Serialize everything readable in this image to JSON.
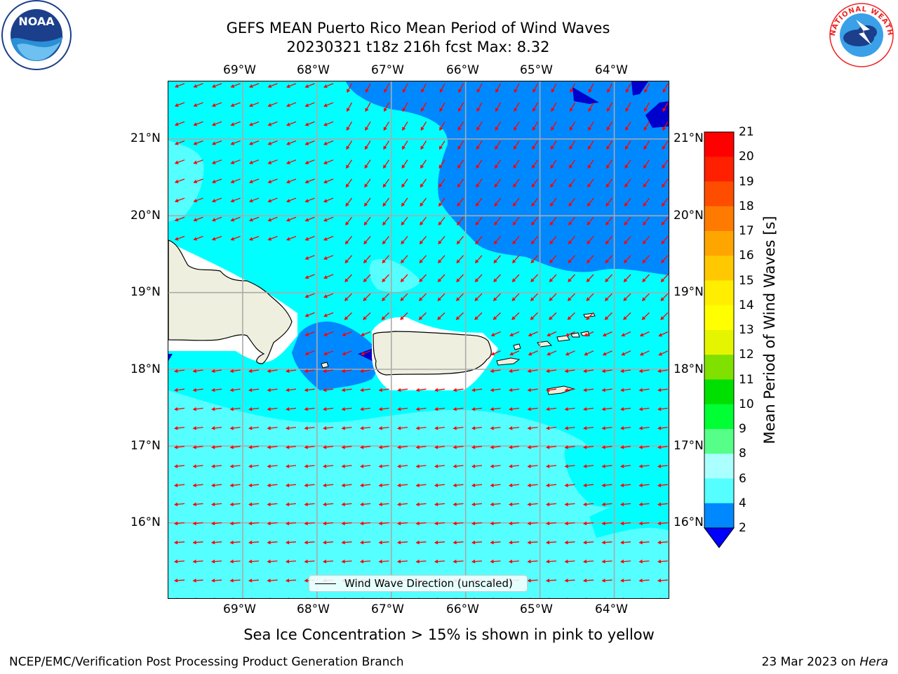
{
  "title": {
    "line1": "GEFS MEAN Puerto Rico Mean Period of Wind Waves",
    "line2": "20230321 t18z 216h fcst   Max: 8.32"
  },
  "axes": {
    "lon_labels": [
      "69°W",
      "68°W",
      "67°W",
      "66°W",
      "65°W",
      "64°W"
    ],
    "lat_labels": [
      "21°N",
      "20°N",
      "19°N",
      "18°N",
      "17°N",
      "16°N"
    ],
    "lon_range": [
      -70.0,
      -63.25
    ],
    "lat_range": [
      15.0,
      21.75
    ],
    "grid": true
  },
  "colorbar": {
    "label": "Mean Period of Wind Waves [s]",
    "ticks": [
      "21",
      "20",
      "19",
      "18",
      "17",
      "16",
      "15",
      "14",
      "13",
      "12",
      "11",
      "10",
      "9",
      "8",
      "6",
      "4",
      "2"
    ],
    "colors": [
      "#ff0000",
      "#ff2000",
      "#ff4d00",
      "#ff7a00",
      "#ffa500",
      "#ffc800",
      "#ffee00",
      "#ffff00",
      "#e5f500",
      "#c8f000",
      "#80e000",
      "#00e000",
      "#00ff33",
      "#55ff88",
      "#aaffff",
      "#55ffff",
      "#00ffff",
      "#0088ff",
      "#0000ff"
    ],
    "extend": "min"
  },
  "legend": {
    "text": "Wind Wave Direction (unscaled)"
  },
  "map_colors": {
    "period_2_4": "#0088ff",
    "period_4_6": "#00ffff",
    "period_6_8": "#55ffff",
    "period_8_9": "#aaffff",
    "period_below_2": "#0000cc",
    "land": "#efefdf",
    "masked": "#ffffff",
    "grid": "#aaaaaa",
    "arrow": "#ff0000"
  },
  "sea_ice_note": "Sea Ice Concentration > 15% is shown in pink to yellow",
  "footer": {
    "left": "NCEP/EMC/Verification Post Processing Product Generation Branch",
    "right_date": "23 Mar 2023 on ",
    "right_host": "Hera"
  },
  "logos": {
    "noaa": "NOAA",
    "nws": "NATIONAL WEATHER SERVICE"
  }
}
